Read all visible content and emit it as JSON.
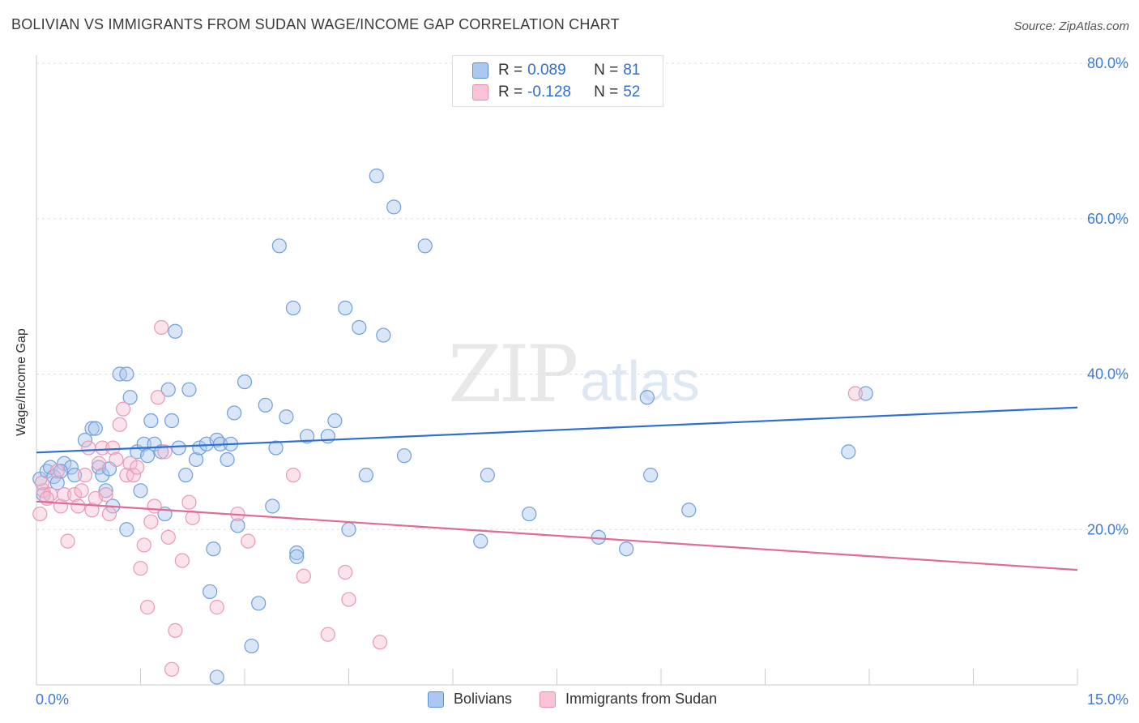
{
  "title": "BOLIVIAN VS IMMIGRANTS FROM SUDAN WAGE/INCOME GAP CORRELATION CHART",
  "source": "Source: ZipAtlas.com",
  "watermark": {
    "zip": "ZIP",
    "atlas": "atlas"
  },
  "colors": {
    "blue": "#2f6fcf",
    "blue_fill": "#aac8f0",
    "pink": "#e06a9a",
    "pink_fill": "#f5b8cc",
    "grid": "#dddddd",
    "tick_label": "#3f7ad6"
  },
  "legend": {
    "rows": [
      {
        "r_label": "R =",
        "r_value": "0.089",
        "n_label": "N =",
        "n_value": "81",
        "color": "#aac8f0",
        "border": "#5a8fd8"
      },
      {
        "r_label": "R =",
        "r_value": "-0.128",
        "n_label": "N =",
        "n_value": "52",
        "color": "#f8c4d4",
        "border": "#e890ae"
      }
    ]
  },
  "bottom_legend": {
    "items": [
      {
        "label": "Bolivians",
        "color": "#aac8f0",
        "border": "#5a8fd8"
      },
      {
        "label": "Immigrants from Sudan",
        "color": "#f8c4d4",
        "border": "#e890ae"
      }
    ]
  },
  "chart_data": {
    "type": "scatter",
    "title": "BOLIVIAN VS IMMIGRANTS FROM SUDAN WAGE/INCOME GAP CORRELATION CHART",
    "xlabel": "",
    "ylabel": "Wage/Income Gap",
    "xlim": [
      0,
      15
    ],
    "ylim": [
      0,
      80
    ],
    "x_tick_labels": [
      "0.0%",
      "15.0%"
    ],
    "y_ticks": [
      20,
      40,
      60,
      80
    ],
    "y_tick_labels": [
      "20.0%",
      "40.0%",
      "60.0%",
      "80.0%"
    ],
    "grid": true,
    "series": [
      {
        "name": "Bolivians",
        "trend": {
          "x": [
            0,
            15
          ],
          "y": [
            29.9,
            35.7
          ]
        },
        "points": [
          [
            0.05,
            26.5
          ],
          [
            0.1,
            24.5
          ],
          [
            0.15,
            27.5
          ],
          [
            0.2,
            28.0
          ],
          [
            0.25,
            26.8
          ],
          [
            0.3,
            26.0
          ],
          [
            0.4,
            28.5
          ],
          [
            0.5,
            28.0
          ],
          [
            0.55,
            27.0
          ],
          [
            0.7,
            31.5
          ],
          [
            0.8,
            33.0
          ],
          [
            0.85,
            33.0
          ],
          [
            0.9,
            28.0
          ],
          [
            0.95,
            27.0
          ],
          [
            1.0,
            25.0
          ],
          [
            1.05,
            27.8
          ],
          [
            1.1,
            23.0
          ],
          [
            1.2,
            40.0
          ],
          [
            1.3,
            40.0
          ],
          [
            1.35,
            37.0
          ],
          [
            1.45,
            30.0
          ],
          [
            1.5,
            25.0
          ],
          [
            1.55,
            31.0
          ],
          [
            1.6,
            29.5
          ],
          [
            1.65,
            34.0
          ],
          [
            1.7,
            31.0
          ],
          [
            1.8,
            30.0
          ],
          [
            1.85,
            22.0
          ],
          [
            1.9,
            38.0
          ],
          [
            1.95,
            34.0
          ],
          [
            2.0,
            45.5
          ],
          [
            2.05,
            30.5
          ],
          [
            2.15,
            27.0
          ],
          [
            2.2,
            38.0
          ],
          [
            2.3,
            29.0
          ],
          [
            2.35,
            30.5
          ],
          [
            2.45,
            31.0
          ],
          [
            2.5,
            12.0
          ],
          [
            2.55,
            17.5
          ],
          [
            2.6,
            31.5
          ],
          [
            2.65,
            31.0
          ],
          [
            2.75,
            29.0
          ],
          [
            2.8,
            31.0
          ],
          [
            2.85,
            35.0
          ],
          [
            2.9,
            20.5
          ],
          [
            3.0,
            39.0
          ],
          [
            3.1,
            5.0
          ],
          [
            3.2,
            10.5
          ],
          [
            3.3,
            36.0
          ],
          [
            3.4,
            23.0
          ],
          [
            3.45,
            30.5
          ],
          [
            3.5,
            56.5
          ],
          [
            3.6,
            34.5
          ],
          [
            3.7,
            48.5
          ],
          [
            3.75,
            17.0
          ],
          [
            3.9,
            32.0
          ],
          [
            4.2,
            32.0
          ],
          [
            4.3,
            34.0
          ],
          [
            4.45,
            48.5
          ],
          [
            4.5,
            20.0
          ],
          [
            4.65,
            46.0
          ],
          [
            4.75,
            27.0
          ],
          [
            4.9,
            65.5
          ],
          [
            5.0,
            45.0
          ],
          [
            5.15,
            61.5
          ],
          [
            5.3,
            29.5
          ],
          [
            5.6,
            56.5
          ],
          [
            6.4,
            18.5
          ],
          [
            6.5,
            27.0
          ],
          [
            7.1,
            22.0
          ],
          [
            8.1,
            19.0
          ],
          [
            8.5,
            17.5
          ],
          [
            8.8,
            37.0
          ],
          [
            8.85,
            27.0
          ],
          [
            9.4,
            22.5
          ],
          [
            11.7,
            30.0
          ],
          [
            11.95,
            37.5
          ],
          [
            3.75,
            16.5
          ],
          [
            2.6,
            1.0
          ],
          [
            1.3,
            20.0
          ],
          [
            0.35,
            27.5
          ]
        ]
      },
      {
        "name": "Immigrants from Sudan",
        "trend": {
          "x": [
            0,
            15
          ],
          "y": [
            23.6,
            14.8
          ]
        },
        "points": [
          [
            0.05,
            22.0
          ],
          [
            0.1,
            25.0
          ],
          [
            0.2,
            24.5
          ],
          [
            0.3,
            27.5
          ],
          [
            0.35,
            23.0
          ],
          [
            0.4,
            24.5
          ],
          [
            0.45,
            18.5
          ],
          [
            0.55,
            24.5
          ],
          [
            0.6,
            23.0
          ],
          [
            0.65,
            25.0
          ],
          [
            0.7,
            27.0
          ],
          [
            0.75,
            30.5
          ],
          [
            0.8,
            22.5
          ],
          [
            0.85,
            24.0
          ],
          [
            0.9,
            28.5
          ],
          [
            0.95,
            30.5
          ],
          [
            1.0,
            24.5
          ],
          [
            1.05,
            22.0
          ],
          [
            1.1,
            30.5
          ],
          [
            1.15,
            29.0
          ],
          [
            1.2,
            33.5
          ],
          [
            1.25,
            35.5
          ],
          [
            1.3,
            27.0
          ],
          [
            1.35,
            28.5
          ],
          [
            1.4,
            27.0
          ],
          [
            1.45,
            28.0
          ],
          [
            1.5,
            15.0
          ],
          [
            1.55,
            18.0
          ],
          [
            1.6,
            10.0
          ],
          [
            1.65,
            21.0
          ],
          [
            1.7,
            23.0
          ],
          [
            1.75,
            37.0
          ],
          [
            1.8,
            46.0
          ],
          [
            1.85,
            30.0
          ],
          [
            1.9,
            19.0
          ],
          [
            1.95,
            2.0
          ],
          [
            2.0,
            7.0
          ],
          [
            2.1,
            16.0
          ],
          [
            2.2,
            23.5
          ],
          [
            2.25,
            21.5
          ],
          [
            2.6,
            10.0
          ],
          [
            2.9,
            22.0
          ],
          [
            3.05,
            18.5
          ],
          [
            3.7,
            27.0
          ],
          [
            3.85,
            14.0
          ],
          [
            4.2,
            6.5
          ],
          [
            4.45,
            14.5
          ],
          [
            4.5,
            11.0
          ],
          [
            4.95,
            5.5
          ],
          [
            11.8,
            37.5
          ],
          [
            0.08,
            26.0
          ],
          [
            0.15,
            24.0
          ]
        ]
      }
    ]
  }
}
